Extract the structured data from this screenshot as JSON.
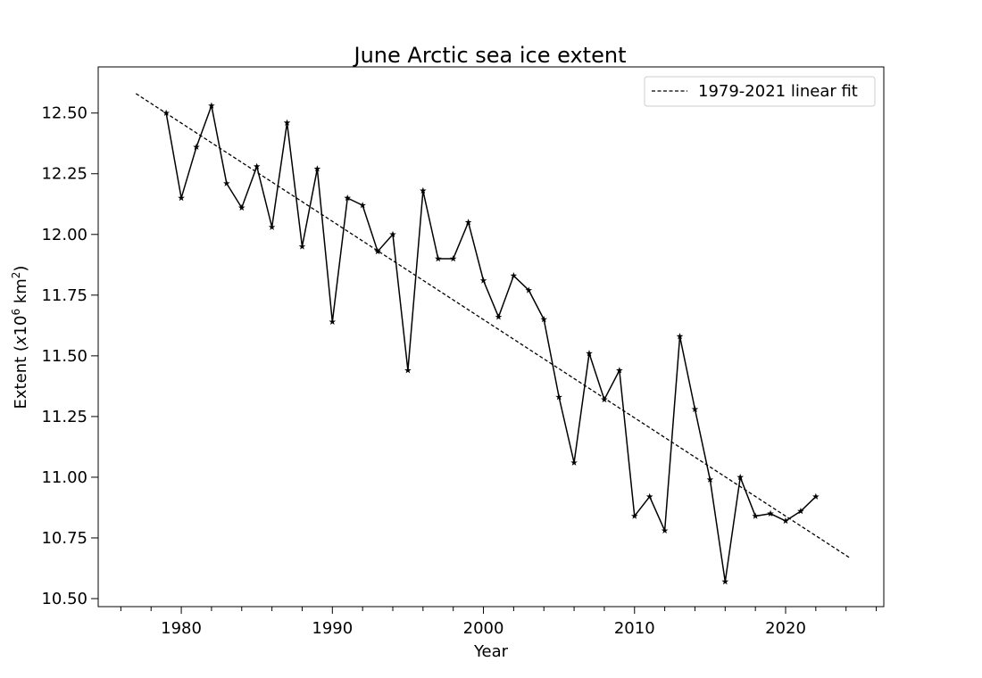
{
  "chart_data": {
    "type": "line",
    "title": "June Arctic sea ice extent",
    "xlabel": "Year",
    "ylabel_prefix": "Extent (",
    "ylabel_x": "x",
    "ylabel_ten": "10",
    "ylabel_exp": "6",
    "ylabel_unit": " km",
    "ylabel_unit_exp": "2",
    "ylabel_suffix": ")",
    "xlim": [
      1974.5,
      2026.5
    ],
    "ylim": [
      10.467,
      12.69
    ],
    "xticks": [
      1980,
      1990,
      2000,
      2010,
      2020
    ],
    "xtick_labels": [
      "1980",
      "1990",
      "2000",
      "2010",
      "2020"
    ],
    "x_minor_step": 2,
    "yticks": [
      10.5,
      10.75,
      11.0,
      11.25,
      11.5,
      11.75,
      12.0,
      12.25,
      12.5
    ],
    "ytick_labels": [
      "10.50",
      "10.75",
      "11.00",
      "11.25",
      "11.50",
      "11.75",
      "12.00",
      "12.25",
      "12.50"
    ],
    "grid": false,
    "legend_position": "top-right",
    "series": [
      {
        "style": "solid",
        "marker": "star",
        "color": "#000000",
        "x": [
          1979,
          1980,
          1981,
          1982,
          1983,
          1984,
          1985,
          1986,
          1987,
          1988,
          1989,
          1990,
          1991,
          1992,
          1993,
          1994,
          1995,
          1996,
          1997,
          1998,
          1999,
          2000,
          2001,
          2002,
          2003,
          2004,
          2005,
          2006,
          2007,
          2008,
          2009,
          2010,
          2011,
          2012,
          2013,
          2014,
          2015,
          2016,
          2017,
          2018,
          2019,
          2020,
          2021,
          2022
        ],
        "y": [
          12.5,
          12.15,
          12.36,
          12.53,
          12.21,
          12.11,
          12.28,
          12.03,
          12.46,
          11.95,
          12.27,
          11.64,
          12.15,
          12.12,
          11.93,
          12.0,
          11.44,
          12.18,
          11.9,
          11.9,
          12.05,
          11.81,
          11.66,
          11.83,
          11.77,
          11.65,
          11.33,
          11.06,
          11.51,
          11.32,
          11.44,
          10.84,
          10.92,
          10.78,
          11.58,
          11.28,
          10.99,
          10.57,
          11.0,
          10.84,
          10.85,
          10.82,
          10.86,
          10.92
        ]
      },
      {
        "name": "1979-2021 linear fit",
        "style": "dashed",
        "color": "#000000",
        "x": [
          1977,
          2024.2
        ],
        "y": [
          12.58,
          10.67
        ]
      }
    ]
  }
}
